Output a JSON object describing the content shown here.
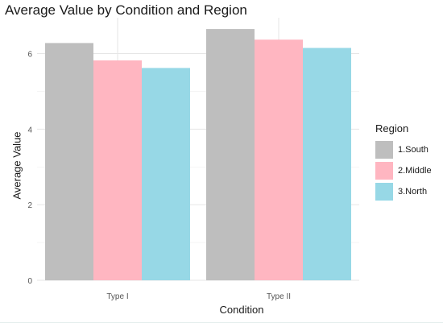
{
  "chart_data": {
    "type": "bar",
    "title": "Average Value by Condition and Region",
    "xlabel": "Condition",
    "ylabel": "Average Value",
    "categories": [
      "Type I",
      "Type II"
    ],
    "series": [
      {
        "name": "1.South",
        "values": [
          6.28,
          6.65
        ],
        "color": "#bebebe"
      },
      {
        "name": "2.Middle",
        "values": [
          5.82,
          6.37
        ],
        "color": "#ffb6c1"
      },
      {
        "name": "3.North",
        "values": [
          5.62,
          6.15
        ],
        "color": "#97d8e6"
      }
    ],
    "yticks": [
      0,
      2,
      4,
      6
    ],
    "ylim": [
      0,
      6.95
    ],
    "legend_title": "Region",
    "legend_position": "right",
    "grid": true
  }
}
